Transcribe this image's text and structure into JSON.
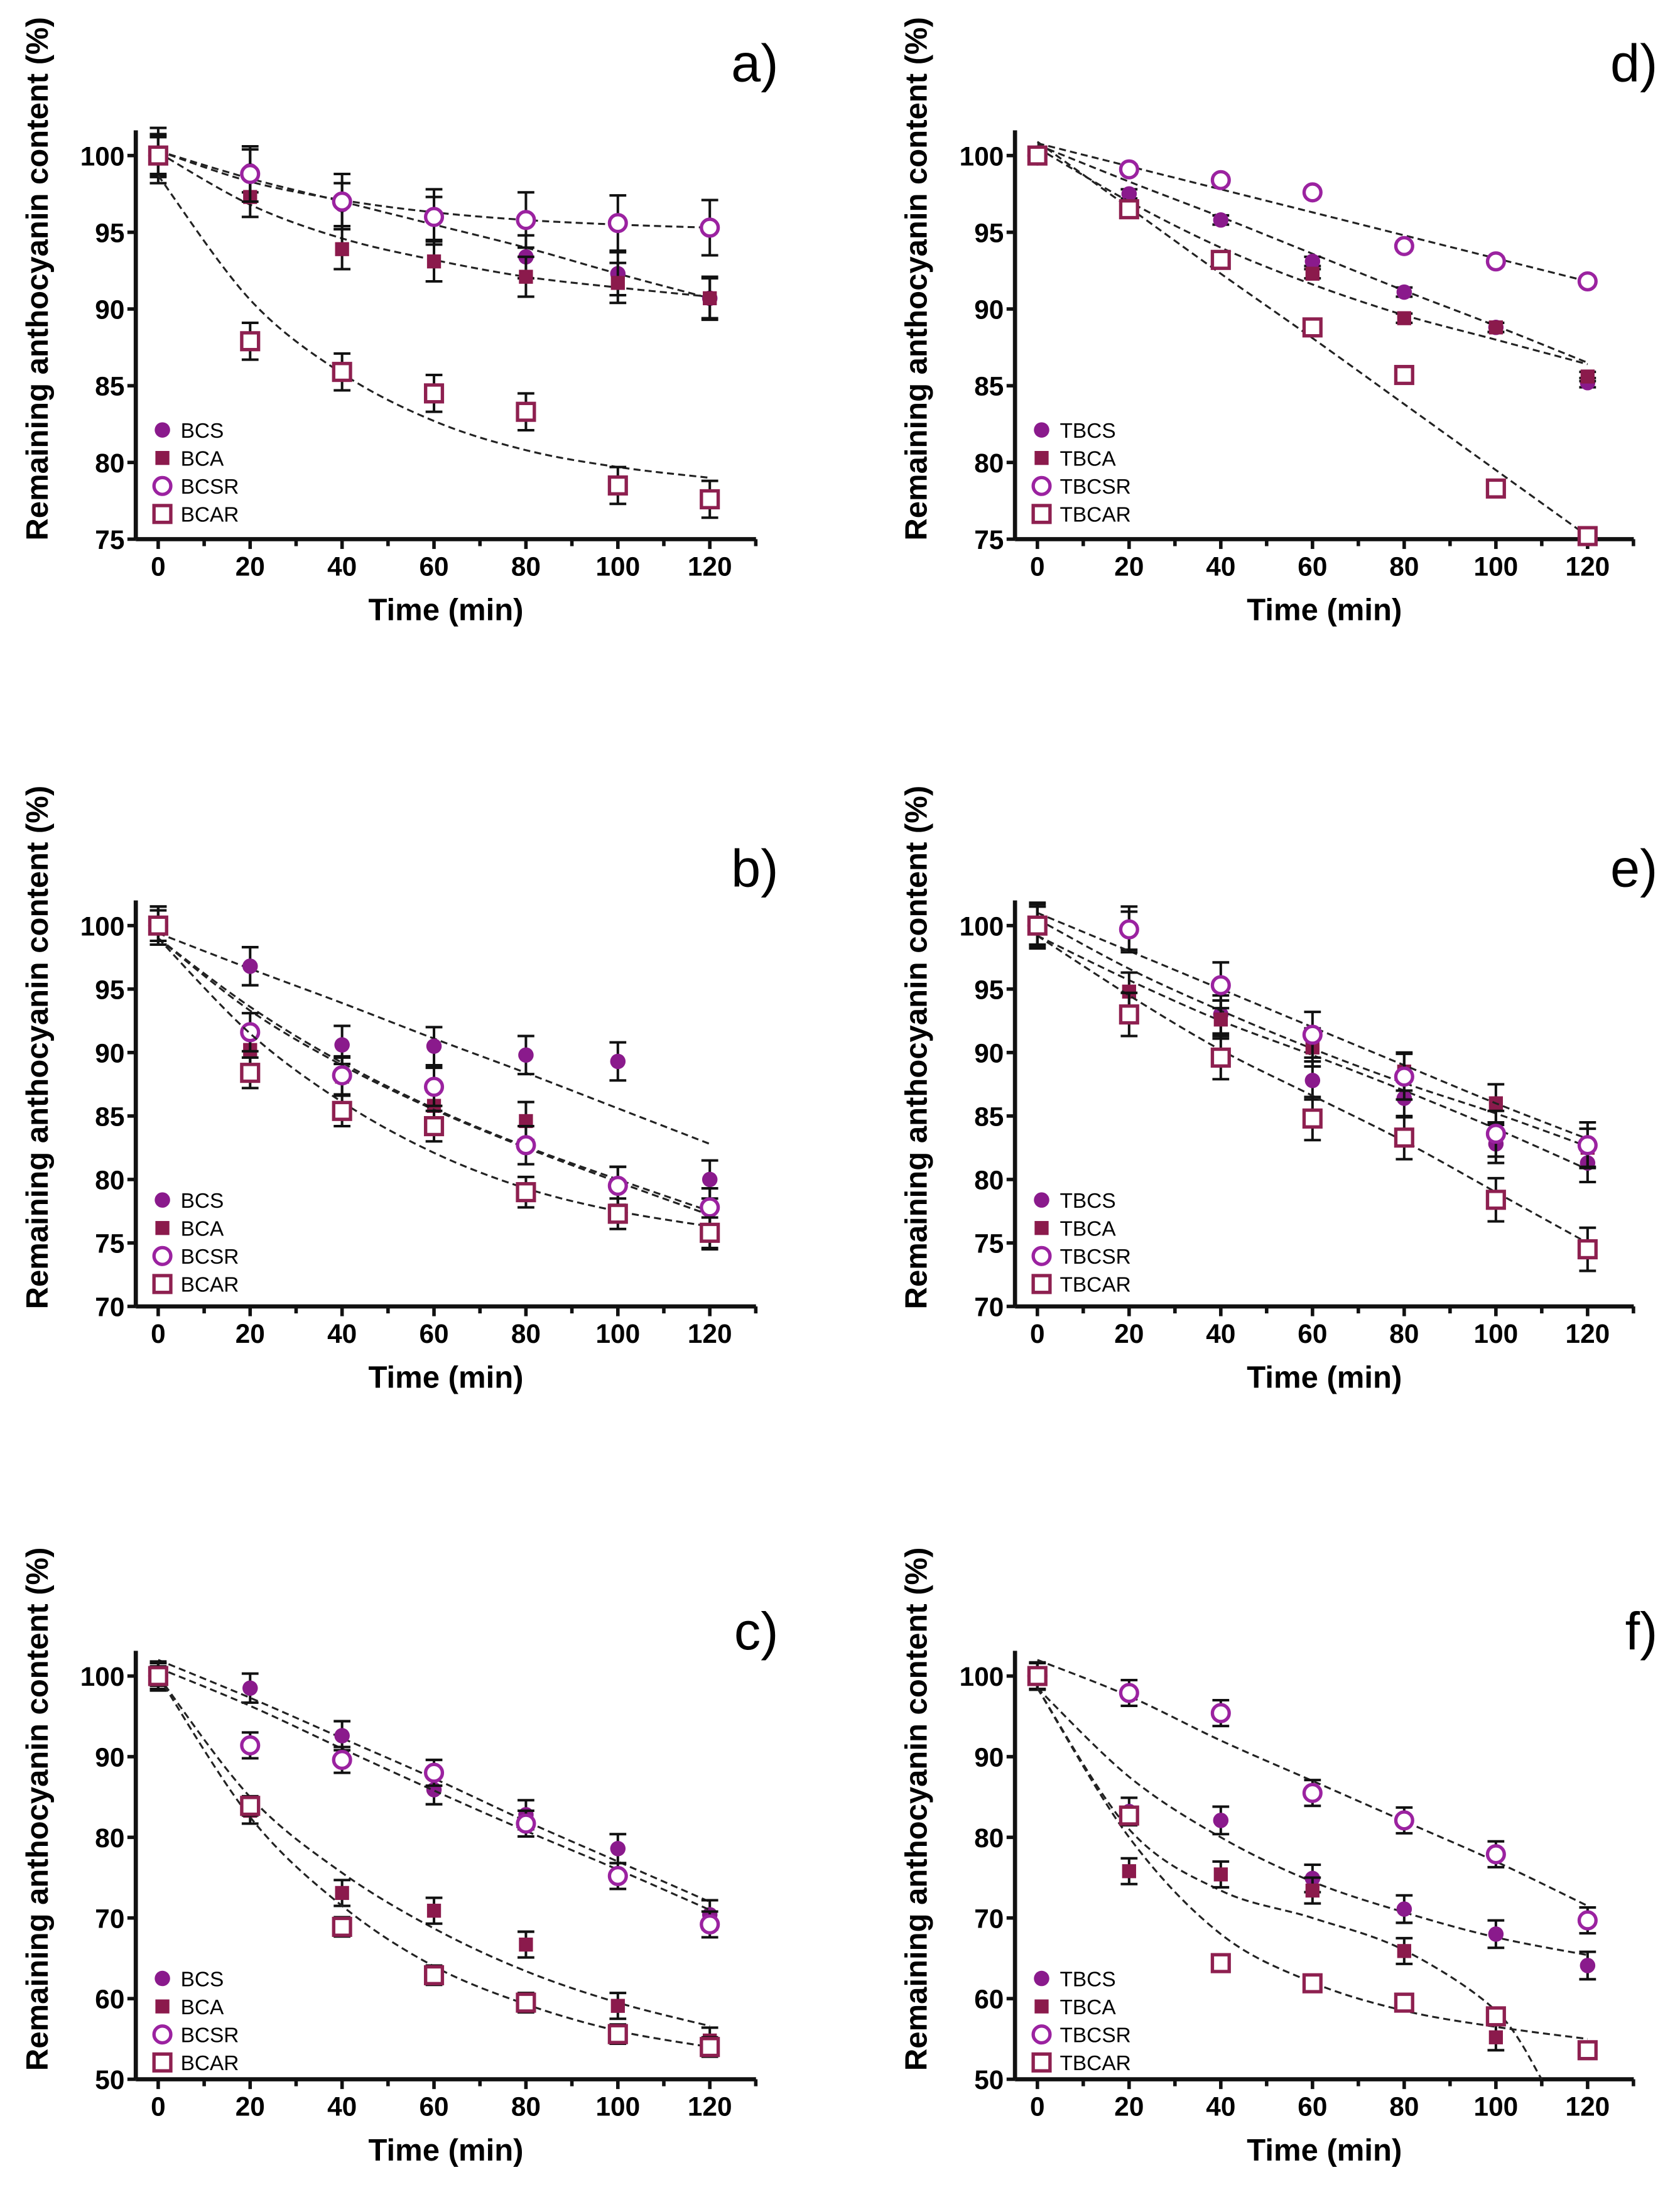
{
  "colors": {
    "filled_circle": "#8a1a8c",
    "filled_square": "#8b1a4c",
    "open_circle": "#9b22a0",
    "open_square": "#8e2050",
    "fit": "#222222",
    "axis": "#111111"
  },
  "chart_data": [
    {
      "type": "scatter",
      "panel": "a)",
      "xlabel": "Time (min)",
      "ylabel": "Remaining anthocyanin content (%)",
      "xlim": [
        0,
        120
      ],
      "ylim": [
        75,
        100
      ],
      "xticks": [
        0,
        20,
        40,
        60,
        80,
        100,
        120
      ],
      "yticks": [
        75,
        80,
        85,
        90,
        95,
        100
      ],
      "legend": "bottom-left",
      "x": [
        0,
        20,
        40,
        60,
        80,
        100,
        120
      ],
      "series": [
        {
          "name": "BCS",
          "marker": "filled-circle",
          "values": [
            100,
            99,
            96.8,
            95.9,
            93.4,
            92.3,
            90.7
          ],
          "err": 1.4,
          "fit": [
            100.3,
            98.5,
            97,
            95.5,
            94,
            92.3,
            90.7
          ]
        },
        {
          "name": "BCA",
          "marker": "filled-square",
          "values": [
            100,
            97.3,
            93.9,
            93.1,
            92.1,
            91.7,
            90.7
          ],
          "err": 1.3,
          "fit": [
            100.2,
            96.8,
            94.6,
            93.2,
            92.1,
            91.4,
            90.8
          ]
        },
        {
          "name": "BCSR",
          "marker": "open-circle",
          "values": [
            100,
            98.8,
            97,
            96,
            95.8,
            95.6,
            95.3
          ],
          "err": 1.8,
          "fit": [
            100.3,
            98.3,
            97.1,
            96.3,
            95.8,
            95.5,
            95.3
          ]
        },
        {
          "name": "BCAR",
          "marker": "open-square",
          "values": [
            100,
            87.9,
            85.9,
            84.5,
            83.3,
            78.5,
            77.6
          ],
          "err": 1.2,
          "fit": [
            98.7,
            90.6,
            85.8,
            82.7,
            80.8,
            79.7,
            79
          ]
        }
      ]
    },
    {
      "type": "scatter",
      "panel": "b)",
      "xlabel": "Time (min)",
      "ylabel": "Remaining anthocyanin content (%)",
      "xlim": [
        0,
        120
      ],
      "ylim": [
        70,
        100
      ],
      "xticks": [
        0,
        20,
        40,
        60,
        80,
        100,
        120
      ],
      "yticks": [
        70,
        75,
        80,
        85,
        90,
        95,
        100
      ],
      "legend": "bottom-left",
      "x": [
        0,
        20,
        40,
        60,
        80,
        100,
        120
      ],
      "series": [
        {
          "name": "BCS",
          "marker": "filled-circle",
          "values": [
            100,
            96.8,
            90.6,
            90.5,
            89.8,
            89.3,
            80
          ],
          "err": 1.5,
          "fit": [
            99.4,
            96.6,
            93.9,
            91.1,
            88.4,
            85.6,
            82.8
          ]
        },
        {
          "name": "BCA",
          "marker": "filled-square",
          "values": [
            100,
            90.2,
            88.1,
            85.8,
            84.6,
            79.5,
            76
          ],
          "err": 1.5,
          "fit": [
            99,
            93.6,
            89.2,
            85.6,
            82.6,
            80,
            77.5
          ]
        },
        {
          "name": "BCSR",
          "marker": "open-circle",
          "values": [
            100,
            91.6,
            88.2,
            87.3,
            82.7,
            79.5,
            77.8
          ],
          "err": 1.5,
          "fit": [
            99,
            93.3,
            89,
            85.5,
            82.5,
            79.8,
            77.2
          ]
        },
        {
          "name": "BCAR",
          "marker": "open-square",
          "values": [
            100,
            88.4,
            85.4,
            84.2,
            79,
            77.3,
            75.8
          ],
          "err": 1.2,
          "fit": [
            99,
            91.5,
            86.1,
            82.1,
            79.3,
            77.5,
            76.3
          ]
        }
      ]
    },
    {
      "type": "scatter",
      "panel": "c)",
      "xlabel": "Time (min)",
      "ylabel": "Remaining anthocyanin content (%)",
      "xlim": [
        0,
        120
      ],
      "ylim": [
        50,
        100
      ],
      "xticks": [
        0,
        20,
        40,
        60,
        80,
        100,
        120
      ],
      "yticks": [
        50,
        60,
        70,
        80,
        90,
        100
      ],
      "legend": "bottom-left",
      "x": [
        0,
        20,
        40,
        60,
        80,
        100,
        120
      ],
      "series": [
        {
          "name": "BCS",
          "marker": "filled-circle",
          "values": [
            100,
            98.5,
            92.6,
            85.9,
            82.8,
            78.6,
            70.4
          ],
          "err": 1.8,
          "fit": [
            102,
            97.3,
            92.3,
            87.3,
            82,
            77,
            72
          ]
        },
        {
          "name": "BCA",
          "marker": "filled-square",
          "values": [
            100,
            83.3,
            73.1,
            70.9,
            66.7,
            59.1,
            54.8
          ],
          "err": 1.6,
          "fit": [
            100,
            85,
            75.6,
            68.7,
            63.4,
            59.5,
            56.6
          ]
        },
        {
          "name": "BCSR",
          "marker": "open-circle",
          "values": [
            100,
            91.4,
            89.6,
            88,
            81.7,
            75.2,
            69.2
          ],
          "err": 1.6,
          "fit": [
            101,
            96.3,
            91,
            85.8,
            80.8,
            76,
            71
          ]
        },
        {
          "name": "BCAR",
          "marker": "open-square",
          "values": [
            100,
            83.9,
            68.9,
            62.9,
            59.5,
            55.6,
            54
          ],
          "err": 1.2,
          "fit": [
            100,
            82.5,
            71.5,
            64,
            59.3,
            56,
            54
          ]
        }
      ]
    },
    {
      "type": "scatter",
      "panel": "d)",
      "xlabel": "Time (min)",
      "ylabel": "Remaining anthocyanin content (%)",
      "xlim": [
        0,
        120
      ],
      "ylim": [
        75,
        100
      ],
      "xticks": [
        0,
        20,
        40,
        60,
        80,
        100,
        120
      ],
      "yticks": [
        75,
        80,
        85,
        90,
        95,
        100
      ],
      "legend": "bottom-left",
      "x": [
        0,
        20,
        40,
        60,
        80,
        100,
        120
      ],
      "series": [
        {
          "name": "TBCS",
          "marker": "filled-circle",
          "values": [
            100,
            97.5,
            95.8,
            93.1,
            91.1,
            88.8,
            85.2
          ],
          "err": 0.3,
          "fit": [
            100.7,
            98.3,
            96,
            93.6,
            91.2,
            88.9,
            86.5
          ]
        },
        {
          "name": "TBCA",
          "marker": "filled-square",
          "values": [
            100,
            96.5,
            93.1,
            92.3,
            89.4,
            88.8,
            85.6
          ],
          "err": 0.3,
          "fit": [
            100.5,
            97,
            94,
            91.6,
            89.6,
            88,
            86.4
          ]
        },
        {
          "name": "TBCSR",
          "marker": "open-circle",
          "values": [
            100,
            99.1,
            98.4,
            97.6,
            94.1,
            93.1,
            91.8
          ],
          "err": 0.3,
          "fit": [
            100.8,
            99.3,
            97.8,
            96.3,
            94.8,
            93.3,
            91.8
          ]
        },
        {
          "name": "TBCAR",
          "marker": "open-square",
          "values": [
            100,
            96.5,
            93.2,
            88.8,
            85.7,
            78.3,
            75.2
          ],
          "err": 0.3,
          "fit": [
            100.9,
            96.6,
            92.3,
            88.1,
            83.8,
            79.5,
            75.2
          ]
        }
      ]
    },
    {
      "type": "scatter",
      "panel": "e)",
      "xlabel": "Time (min)",
      "ylabel": "Remaining anthocyanin content (%)",
      "xlim": [
        0,
        120
      ],
      "ylim": [
        70,
        100
      ],
      "xticks": [
        0,
        20,
        40,
        60,
        80,
        100,
        120
      ],
      "yticks": [
        70,
        75,
        80,
        85,
        90,
        95,
        100
      ],
      "legend": "bottom-left",
      "x": [
        0,
        20,
        40,
        60,
        80,
        100,
        120
      ],
      "series": [
        {
          "name": "TBCS",
          "marker": "filled-circle",
          "values": [
            100,
            99.6,
            93,
            87.8,
            86.4,
            82.8,
            81.3
          ],
          "err": 1.5,
          "fit": [
            99.2,
            95.7,
            92.5,
            89.8,
            87,
            84,
            80.8
          ]
        },
        {
          "name": "TBCA",
          "marker": "filled-square",
          "values": [
            100,
            94.8,
            92.6,
            90.4,
            88.5,
            86,
            82.5
          ],
          "err": 1.5,
          "fit": [
            100.5,
            96.6,
            93.3,
            90.3,
            87.6,
            85.2,
            82.6
          ]
        },
        {
          "name": "TBCSR",
          "marker": "open-circle",
          "values": [
            100,
            99.7,
            95.3,
            91.4,
            88.1,
            83.6,
            82.7
          ],
          "err": 1.8,
          "fit": [
            101,
            98,
            95,
            92,
            89,
            86,
            83.2
          ]
        },
        {
          "name": "TBCAR",
          "marker": "open-square",
          "values": [
            100,
            93,
            89.6,
            84.8,
            83.3,
            78.4,
            74.5
          ],
          "err": 1.7,
          "fit": [
            99.2,
            94.5,
            90.2,
            86.6,
            83,
            79,
            75
          ]
        }
      ]
    },
    {
      "type": "scatter",
      "panel": "f)",
      "xlabel": "Time (min)",
      "ylabel": "Remaining anthocyanin content (%)",
      "xlim": [
        0,
        120
      ],
      "ylim": [
        50,
        100
      ],
      "xticks": [
        0,
        20,
        40,
        60,
        80,
        100,
        120
      ],
      "yticks": [
        50,
        60,
        70,
        80,
        90,
        100
      ],
      "legend": "bottom-left",
      "x": [
        0,
        20,
        40,
        60,
        80,
        100,
        120
      ],
      "series": [
        {
          "name": "TBCS",
          "marker": "filled-circle",
          "values": [
            100,
            83.2,
            82.1,
            74.9,
            71.1,
            68,
            64.1
          ],
          "err": 1.7,
          "fit": [
            98.5,
            87.5,
            80,
            74.5,
            70.7,
            67.6,
            65.4
          ]
        },
        {
          "name": "TBCA",
          "marker": "filled-square",
          "values": [
            100,
            75.8,
            75.4,
            73.4,
            65.9,
            55.2,
            null
          ],
          "err": 1.6,
          "fit": [
            98.5,
            81,
            73.4,
            70,
            66,
            58.5,
            null
          ],
          "fit_end": [
            110,
            50
          ]
        },
        {
          "name": "TBCSR",
          "marker": "open-circle",
          "values": [
            100,
            97.9,
            95.4,
            85.5,
            82.1,
            77.9,
            69.7
          ],
          "err": 1.6,
          "fit": [
            102,
            97.5,
            92,
            87,
            82,
            77,
            71.5
          ]
        },
        {
          "name": "TBCAR",
          "marker": "open-square",
          "values": [
            100,
            82.7,
            64.4,
            61.9,
            59.5,
            57.8,
            53.6
          ],
          "err": 1.0,
          "fit": [
            98.5,
            80,
            68,
            62,
            58.5,
            56.5,
            55
          ]
        }
      ]
    }
  ]
}
